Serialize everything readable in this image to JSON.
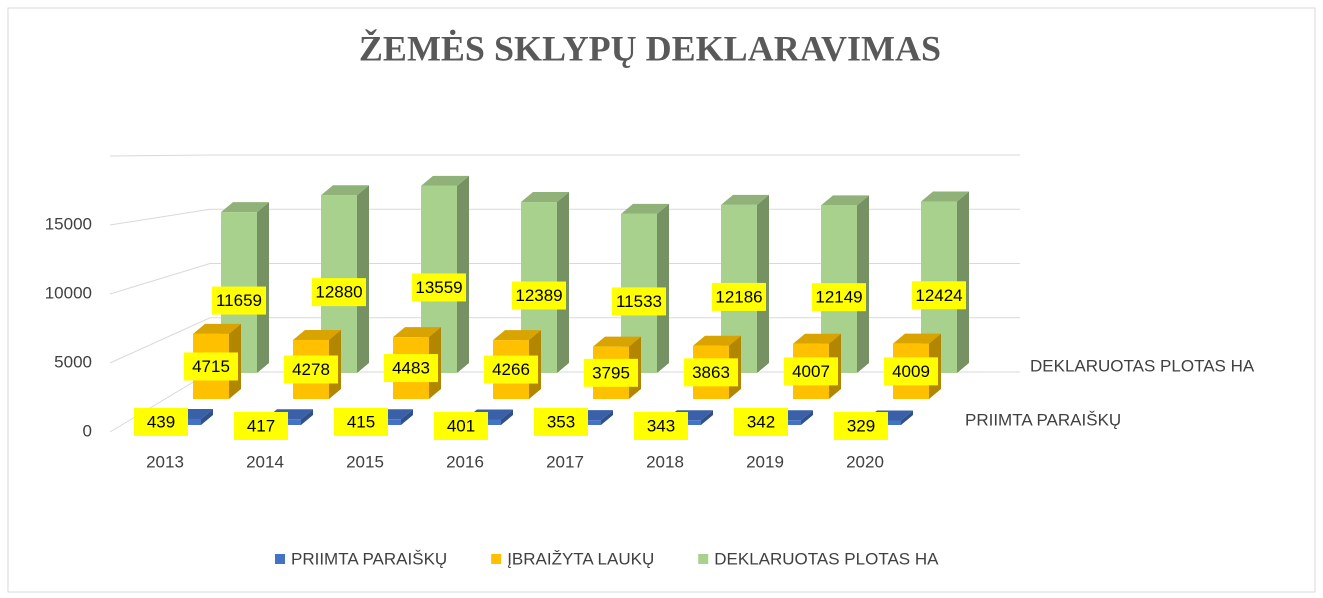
{
  "chart_data": {
    "type": "bar3d",
    "title": "ŽEMĖS SKLYPŲ DEKLARAVIMAS",
    "categories": [
      "2013",
      "2014",
      "2015",
      "2016",
      "2017",
      "2018",
      "2019",
      "2020"
    ],
    "series": [
      {
        "name": "PRIIMTA PARAIŠKŲ",
        "color": "#4472c4",
        "values": [
          439,
          417,
          415,
          401,
          353,
          343,
          342,
          329
        ]
      },
      {
        "name": "ĮBRAIŽYTA LAUKŲ",
        "color": "#ffc000",
        "values": [
          4715,
          4278,
          4483,
          4266,
          3795,
          3863,
          4007,
          4009
        ]
      },
      {
        "name": "DEKLARUOTAS PLOTAS HA",
        "color": "#a9d18e",
        "values": [
          11659,
          12880,
          13559,
          12389,
          11533,
          12186,
          12149,
          12424
        ]
      }
    ],
    "ylim": [
      0,
      20000
    ],
    "yticks": [
      0,
      5000,
      10000,
      15000
    ],
    "grid": true,
    "legend": "bottom",
    "value_label_color": "#ffff00"
  }
}
